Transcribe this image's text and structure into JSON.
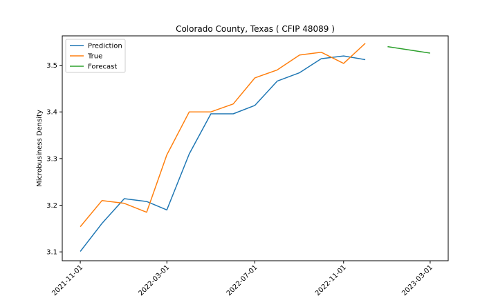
{
  "chart_data": {
    "type": "line",
    "title": "Colorado County, Texas ( CFIP 48089 )",
    "xlabel": "",
    "ylabel": "Microbusiness Density",
    "x_ticks": [
      "2021-11-01",
      "2022-03-01",
      "2022-07-01",
      "2022-11-01",
      "2023-03-01"
    ],
    "y_ticks": [
      "3.1",
      "3.2",
      "3.3",
      "3.4",
      "3.5"
    ],
    "ylim": [
      3.081,
      3.563
    ],
    "xlim": [
      "2021-10-07",
      "2023-03-26"
    ],
    "legend_position": "upper-left",
    "grid": false,
    "series": [
      {
        "name": "Prediction",
        "color": "#1f77b4",
        "x": [
          "2021-11-01",
          "2021-12-01",
          "2022-01-01",
          "2022-02-01",
          "2022-03-01",
          "2022-04-01",
          "2022-05-01",
          "2022-06-01",
          "2022-07-01",
          "2022-08-01",
          "2022-09-01",
          "2022-10-01",
          "2022-11-01",
          "2022-12-01"
        ],
        "y": [
          3.101,
          3.161,
          3.214,
          3.208,
          3.19,
          3.31,
          3.396,
          3.396,
          3.414,
          3.466,
          3.484,
          3.514,
          3.52,
          3.512
        ]
      },
      {
        "name": "True",
        "color": "#ff7f0e",
        "x": [
          "2021-11-01",
          "2021-12-01",
          "2022-01-01",
          "2022-02-01",
          "2022-03-01",
          "2022-04-01",
          "2022-05-01",
          "2022-06-01",
          "2022-07-01",
          "2022-08-01",
          "2022-09-01",
          "2022-10-01",
          "2022-11-01",
          "2022-12-01"
        ],
        "y": [
          3.154,
          3.21,
          3.204,
          3.185,
          3.308,
          3.4,
          3.4,
          3.417,
          3.473,
          3.49,
          3.522,
          3.528,
          3.504,
          3.547
        ]
      },
      {
        "name": "Forecast",
        "color": "#2ca02c",
        "x": [
          "2023-01-01",
          "2023-03-01"
        ],
        "y": [
          3.54,
          3.526
        ]
      }
    ]
  }
}
